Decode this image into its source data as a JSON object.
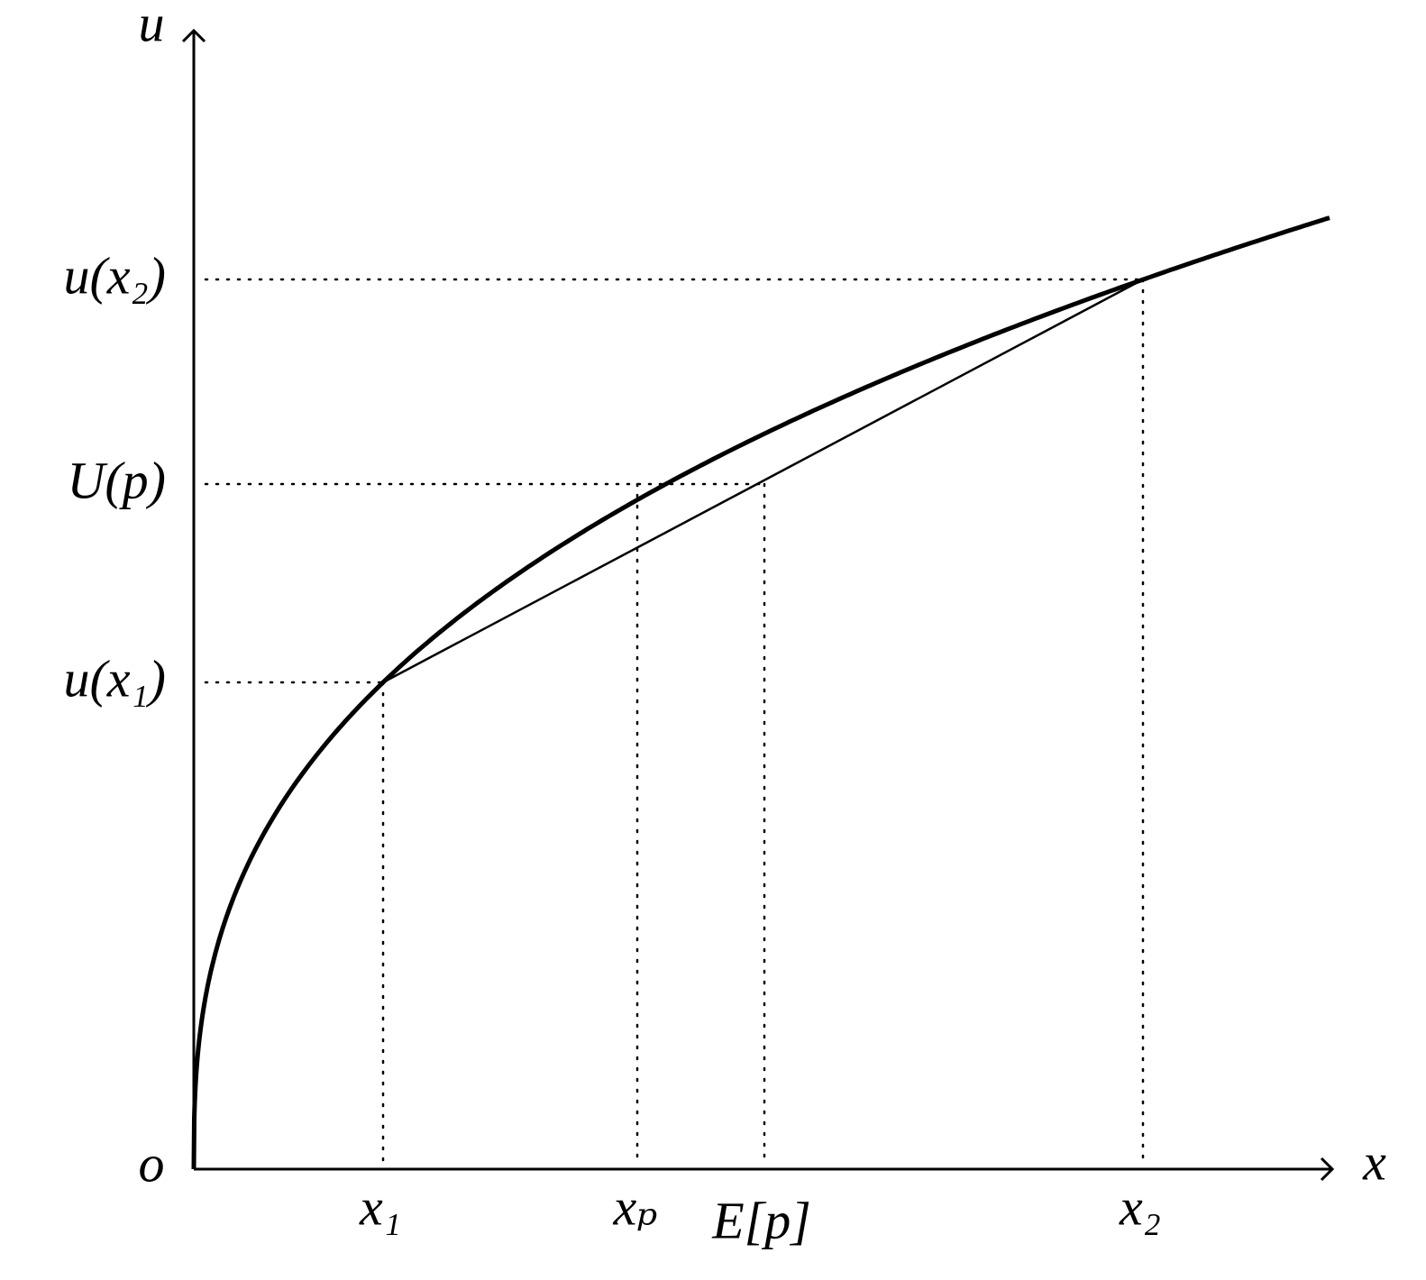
{
  "axes": {
    "y_label": "u",
    "x_label": "x",
    "origin": "o"
  },
  "y_labels": [
    "u(x₂)",
    "U(p)",
    "u(x₁)"
  ],
  "x_labels": [
    "x₁",
    "xₚ",
    "E[p]",
    "x₂"
  ]
}
